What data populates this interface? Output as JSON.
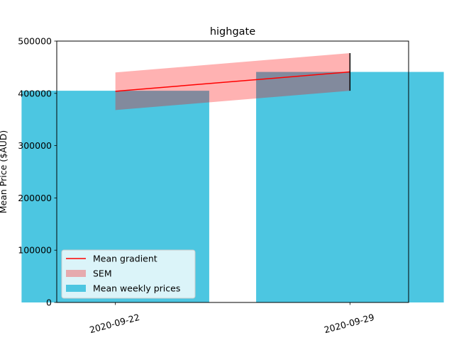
{
  "chart_data": {
    "type": "bar",
    "title": "highgate",
    "xlabel": "",
    "ylabel": "Mean Price ($AUD)",
    "ylim": [
      0,
      500000
    ],
    "yticks": [
      0,
      100000,
      200000,
      300000,
      400000,
      500000
    ],
    "yticklabels": [
      "0",
      "100000",
      "200000",
      "300000",
      "400000",
      "500000"
    ],
    "categories": [
      "2020-09-22",
      "2020-09-29"
    ],
    "series": [
      {
        "name": "Mean weekly prices",
        "type": "bar",
        "values": [
          405000,
          441000
        ],
        "color": "#4cc6e1"
      },
      {
        "name": "Mean gradient",
        "type": "line",
        "values": [
          404000,
          441000
        ],
        "color": "#ff0000"
      },
      {
        "name": "SEM",
        "type": "band",
        "lower": [
          368000,
          405000
        ],
        "upper": [
          440000,
          477000
        ],
        "color": "#ff0000",
        "alpha": 0.3
      }
    ],
    "error_bar": {
      "category": "2020-09-29",
      "lower": 405000,
      "upper": 477000,
      "color": "#000000"
    },
    "legend": {
      "location": "lower-left",
      "entries": [
        "Mean gradient",
        "SEM",
        "Mean weekly prices"
      ]
    },
    "grid": false
  }
}
